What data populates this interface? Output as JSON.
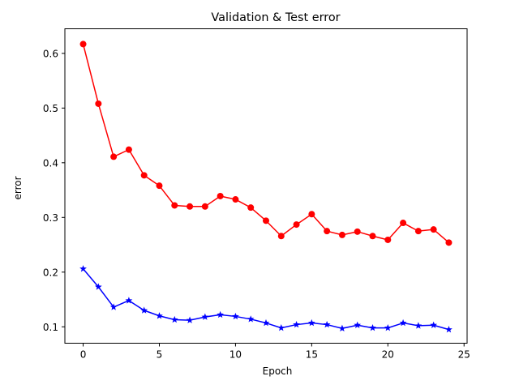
{
  "chart_data": {
    "type": "line",
    "title": "Validation & Test  error",
    "xlabel": "Epoch",
    "ylabel": "error",
    "xlim": [
      -1.2,
      25.2
    ],
    "ylim": [
      0.07,
      0.645
    ],
    "xticks": [
      0,
      5,
      10,
      15,
      20,
      25
    ],
    "yticks": [
      0.1,
      0.2,
      0.3,
      0.4,
      0.5,
      0.6
    ],
    "grid": false,
    "legend": "none",
    "x": [
      0,
      1,
      2,
      3,
      4,
      5,
      6,
      7,
      8,
      9,
      10,
      11,
      12,
      13,
      14,
      15,
      16,
      17,
      18,
      19,
      20,
      21,
      22,
      23,
      24
    ],
    "series": [
      {
        "color": "#ff0000",
        "marker": "circle",
        "values": [
          0.617,
          0.508,
          0.411,
          0.424,
          0.377,
          0.358,
          0.322,
          0.32,
          0.32,
          0.339,
          0.333,
          0.318,
          0.294,
          0.266,
          0.287,
          0.306,
          0.275,
          0.268,
          0.274,
          0.266,
          0.259,
          0.29,
          0.275,
          0.278,
          0.254
        ]
      },
      {
        "color": "#0000ff",
        "marker": "star",
        "values": [
          0.206,
          0.173,
          0.136,
          0.148,
          0.13,
          0.12,
          0.113,
          0.112,
          0.118,
          0.122,
          0.119,
          0.114,
          0.107,
          0.098,
          0.104,
          0.107,
          0.104,
          0.097,
          0.103,
          0.098,
          0.098,
          0.107,
          0.102,
          0.103,
          0.095
        ]
      }
    ]
  }
}
